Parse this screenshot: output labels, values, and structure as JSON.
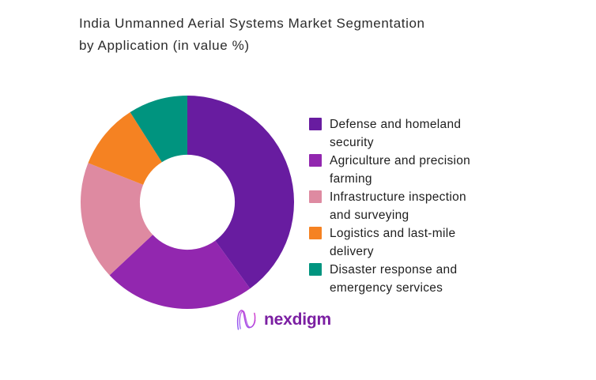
{
  "title": {
    "line1": "India Unmanned Aerial Systems Market Segmentation",
    "line2": "by Application (in value %)"
  },
  "chart_data": {
    "type": "pie",
    "subtype": "donut",
    "title": "India Unmanned Aerial Systems Market Segmentation by Application (in value %)",
    "unit": "%",
    "start_angle_deg_from_top": 0,
    "direction": "clockwise",
    "inner_radius_ratio": 0.445,
    "legend_position": "right",
    "data_labels_shown": false,
    "segments": [
      {
        "label": "Defense and homeland security",
        "legend_lines": [
          "Defense and homeland",
          "security"
        ],
        "value": 40,
        "color": "#681CA0"
      },
      {
        "label": "Agriculture and precision farming",
        "legend_lines": [
          "Agriculture and precision",
          "farming"
        ],
        "value": 23,
        "color": "#9227AF"
      },
      {
        "label": "Infrastructure inspection and surveying",
        "legend_lines": [
          "Infrastructure inspection",
          "and surveying"
        ],
        "value": 18,
        "color": "#DE8AA1"
      },
      {
        "label": "Logistics and last-mile delivery",
        "legend_lines": [
          "Logistics and last-mile",
          "delivery"
        ],
        "value": 10,
        "color": "#F58222"
      },
      {
        "label": "Disaster response and emergency services",
        "legend_lines": [
          "Disaster response and",
          "emergency services"
        ],
        "value": 9,
        "color": "#00947F"
      }
    ]
  },
  "logo": {
    "brand_text": "nexdigm",
    "wordmark_color": "#7B1FA2",
    "mark_icon": "n-wave-monogram-icon",
    "mark_gradient_start": "#8B5CF6",
    "mark_gradient_end": "#D633C8"
  },
  "colors": {
    "background": "#FFFFFF",
    "title_text": "#2B2B2B",
    "legend_text": "#1E1E1E"
  }
}
